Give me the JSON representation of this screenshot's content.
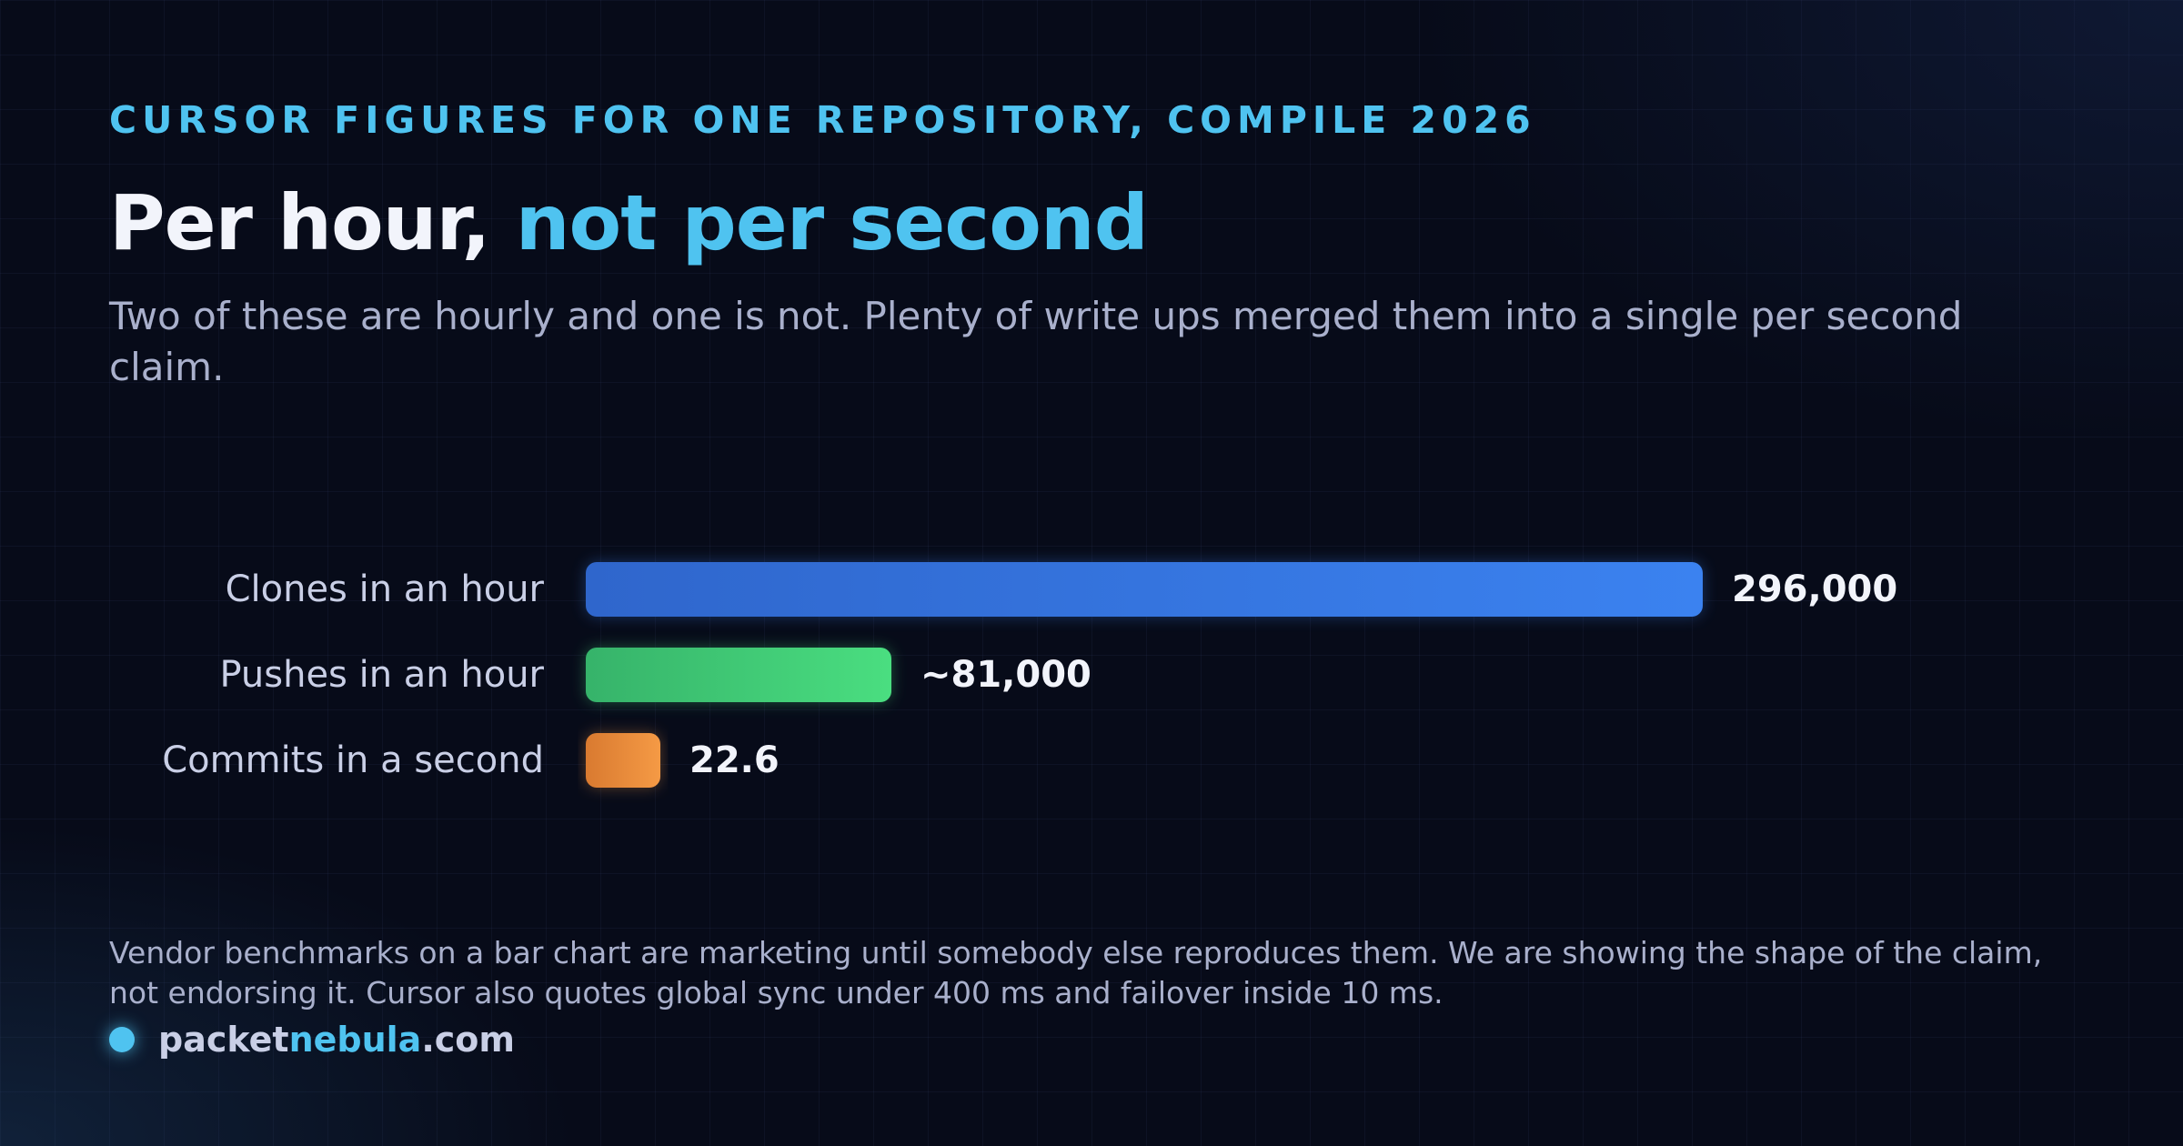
{
  "header": {
    "eyebrow": "CURSOR FIGURES FOR ONE REPOSITORY, COMPILE 2026",
    "title_plain": "Per hour, ",
    "title_accent": "not per second",
    "subtitle": "Two of these are hourly and one is not. Plenty of write ups merged them into a single per second claim."
  },
  "chart_data": {
    "type": "bar",
    "orientation": "horizontal",
    "categories": [
      "Clones in an hour",
      "Pushes in an hour",
      "Commits in a second"
    ],
    "values": [
      296000,
      81000,
      22.6
    ],
    "value_labels": [
      "296,000",
      "~81,000",
      "22.6"
    ],
    "colors": [
      [
        "#2f66cc",
        "#3b82f0"
      ],
      [
        "#36b36a",
        "#4ade80"
      ],
      [
        "#d97a30",
        "#f59a45"
      ]
    ],
    "title": "",
    "xlabel": "",
    "ylabel": "",
    "grid": false,
    "legend": false
  },
  "footer": {
    "note": "Vendor benchmarks on a bar chart are marketing until somebody else reproduces them. We are showing the shape of the claim, not endorsing it. Cursor also quotes global sync under 400 ms and failover inside 10 ms.",
    "brand_plain": "packet",
    "brand_accent": "nebula",
    "brand_suffix": ".com"
  }
}
